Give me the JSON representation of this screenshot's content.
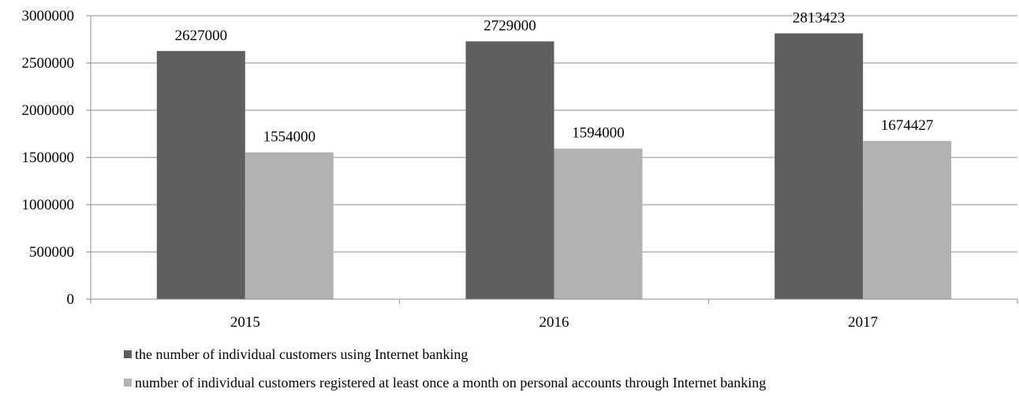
{
  "chart_data": {
    "type": "bar",
    "categories": [
      "2015",
      "2016",
      "2017"
    ],
    "series": [
      {
        "name": "the number of individual customers using Internet banking",
        "values": [
          2627000,
          2729000,
          2813423
        ],
        "color": "#5f5f5f"
      },
      {
        "name": "number of individual customers registered at least once a month on personal accounts through Internet banking",
        "values": [
          1554000,
          1594000,
          1674427
        ],
        "color": "#b2b2b2"
      }
    ],
    "data_labels": [
      [
        "2627000",
        "2729000",
        "2813423"
      ],
      [
        "1554000",
        "1594000",
        "1674427"
      ]
    ],
    "y_ticks": [
      "0",
      "500000",
      "1000000",
      "1500000",
      "2000000",
      "2500000",
      "3000000"
    ],
    "ylim": [
      0,
      3000000
    ],
    "grid": true,
    "legend_position": "bottom-left"
  }
}
